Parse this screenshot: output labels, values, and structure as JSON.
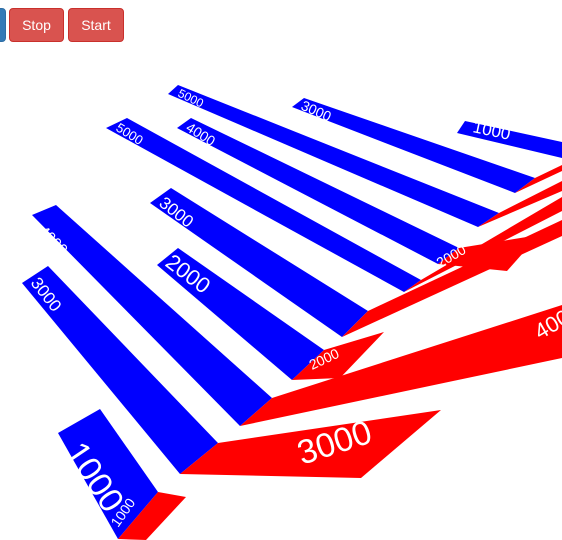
{
  "toolbar": {
    "partial_button_color": "#337ab7",
    "stop_label": "Stop",
    "start_label": "Start",
    "button_color": "#d9534f"
  },
  "scene": {
    "colors": {
      "bar_side": "#0000ff",
      "bar_end": "#ff0000",
      "label": "#ffffff"
    },
    "bars": [
      {
        "row": 0,
        "side_label": "1000",
        "end_label": "1000"
      },
      {
        "row": 0,
        "side_label": "3000",
        "end_label": "3000"
      },
      {
        "row": 0,
        "side_label": "4000",
        "end_label": "4000"
      },
      {
        "row": 1,
        "side_label": "2000",
        "end_label": "2000"
      },
      {
        "row": 1,
        "side_label": "3000",
        "end_label": ""
      },
      {
        "row": 1,
        "side_label": "5000",
        "end_label": ""
      },
      {
        "row": 2,
        "side_label": "4000",
        "end_label": "2000"
      },
      {
        "row": 2,
        "side_label": "5000",
        "end_label": ""
      },
      {
        "row": 2,
        "side_label": "3000",
        "end_label": ""
      },
      {
        "row": 2,
        "side_label": "1000",
        "end_label": ""
      }
    ]
  }
}
